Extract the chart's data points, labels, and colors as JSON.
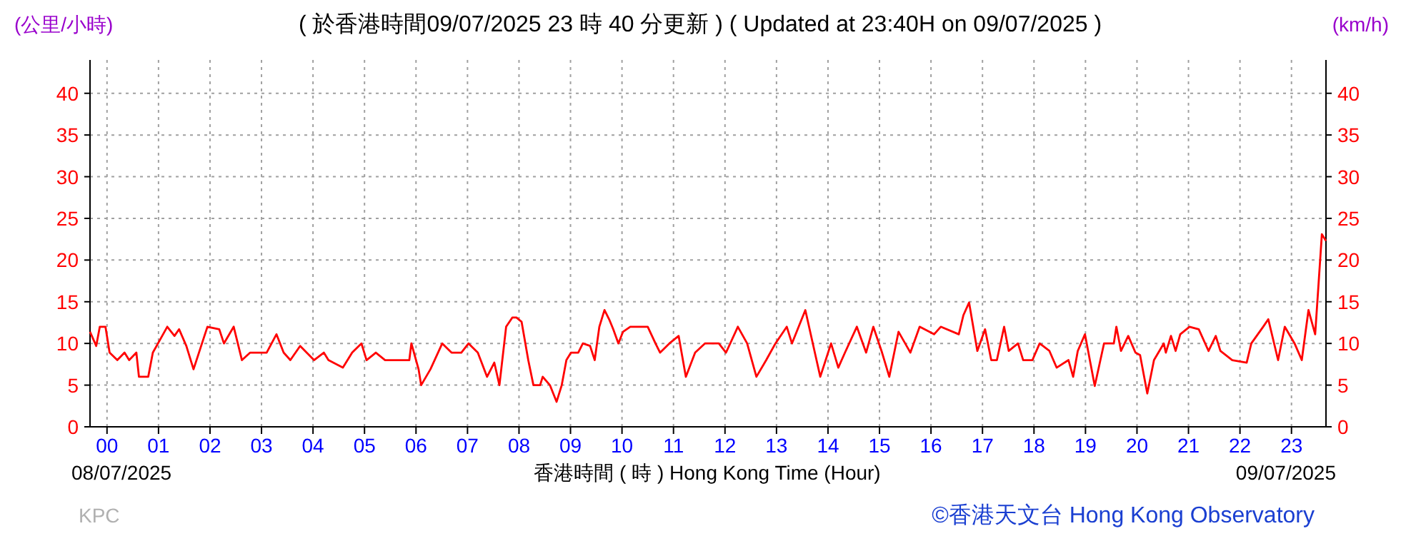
{
  "chart_data": {
    "type": "line",
    "title": "( 於香港時間09/07/2025 23 時 40 分更新 ) ( Updated at 23:40H on 09/07/2025 )",
    "xlabel": "香港時間 ( 時 ) Hong Kong Time (Hour)",
    "ylabel": "(公里/小時)",
    "y2label": "(km/h)",
    "annotations": [
      "08/07/2025",
      "09/07/2025",
      "KPC",
      "©香港天文台 Hong Kong Observatory"
    ],
    "x": [
      -0.33,
      -0.21,
      -0.14,
      -0.03,
      0.05,
      0.2,
      0.34,
      0.43,
      0.57,
      0.62,
      0.8,
      0.89,
      0.99,
      1.17,
      1.31,
      1.4,
      1.54,
      1.68,
      1.86,
      1.95,
      2.18,
      2.27,
      2.46,
      2.62,
      2.78,
      3.1,
      3.29,
      3.43,
      3.56,
      3.75,
      4.02,
      4.21,
      4.3,
      4.58,
      4.76,
      4.94,
      5.04,
      5.22,
      5.4,
      5.87,
      5.91,
      6.05,
      6.1,
      6.28,
      6.51,
      6.69,
      6.88,
      7.02,
      7.2,
      7.38,
      7.52,
      7.62,
      7.75,
      7.87,
      7.95,
      8.05,
      8.18,
      8.28,
      8.41,
      8.46,
      8.6,
      8.73,
      8.83,
      8.92,
      9.01,
      9.15,
      9.24,
      9.38,
      9.47,
      9.56,
      9.66,
      9.75,
      9.83,
      9.93,
      10.02,
      10.16,
      10.5,
      10.65,
      10.74,
      10.92,
      11.1,
      11.24,
      11.42,
      11.61,
      11.88,
      12.02,
      12.25,
      12.43,
      12.61,
      12.8,
      12.98,
      13.2,
      13.3,
      13.56,
      13.85,
      14.06,
      14.2,
      14.33,
      14.56,
      14.74,
      14.88,
      15.05,
      15.19,
      15.37,
      15.6,
      15.78,
      16.06,
      16.19,
      16.54,
      16.63,
      16.74,
      16.9,
      17.05,
      17.17,
      17.28,
      17.42,
      17.51,
      17.69,
      17.79,
      17.97,
      18.11,
      18.3,
      18.44,
      18.67,
      18.76,
      18.85,
      18.99,
      19.18,
      19.36,
      19.55,
      19.6,
      19.69,
      19.83,
      19.97,
      20.06,
      20.2,
      20.33,
      20.52,
      20.56,
      20.66,
      20.75,
      20.84,
      21.02,
      21.2,
      21.39,
      21.53,
      21.62,
      21.85,
      22.13,
      22.22,
      22.45,
      22.55,
      22.74,
      22.87,
      23.06,
      23.2,
      23.33,
      23.46,
      23.52,
      23.59,
      23.67
    ],
    "series": [
      {
        "color": "#ff0000",
        "values": [
          11.4,
          9.7,
          12,
          12,
          8.9,
          8,
          8.9,
          8,
          8.9,
          6,
          6,
          8.9,
          10,
          12,
          10.9,
          11.7,
          9.7,
          6.9,
          10.3,
          12,
          11.7,
          10,
          12,
          8,
          8.9,
          8.9,
          11.1,
          8.9,
          8,
          9.7,
          8,
          8.9,
          8,
          7.1,
          8.9,
          10,
          8,
          8.9,
          8,
          8,
          10,
          6.9,
          5,
          6.9,
          10,
          8.9,
          8.9,
          10,
          8.9,
          6,
          7.7,
          5,
          12,
          13.1,
          13.1,
          12.6,
          8,
          5,
          5,
          6,
          5,
          3,
          5,
          8,
          8.9,
          8.9,
          10,
          9.7,
          8,
          12,
          14,
          12.9,
          11.7,
          10,
          11.4,
          12,
          12,
          10,
          8.9,
          10,
          10.9,
          6,
          8.9,
          10,
          10,
          8.9,
          12,
          10,
          6,
          8,
          10,
          12,
          10,
          14,
          6,
          10,
          7.1,
          8.9,
          12,
          8.9,
          12,
          8.9,
          6,
          11.4,
          8.9,
          12,
          11.1,
          12,
          11.1,
          13.4,
          14.9,
          9.1,
          11.7,
          8,
          8,
          12,
          9.1,
          10,
          8,
          8,
          10,
          9.1,
          7.1,
          8,
          6,
          9.1,
          11.1,
          4.9,
          10,
          10,
          12,
          9.1,
          10.9,
          8.9,
          8.6,
          4,
          8,
          10,
          8.9,
          10.9,
          9.1,
          11.1,
          12,
          11.7,
          9.1,
          10.9,
          9.1,
          8,
          7.7,
          10,
          12,
          12.9,
          8,
          12,
          10,
          8,
          14,
          11.1,
          16.6,
          23.1,
          22.3
        ]
      }
    ],
    "xlim": [
      -0.33,
      23.67
    ],
    "xticks": [
      {
        "value": 0,
        "label": "00"
      },
      {
        "value": 1,
        "label": "01"
      },
      {
        "value": 2,
        "label": "02"
      },
      {
        "value": 3,
        "label": "03"
      },
      {
        "value": 4,
        "label": "04"
      },
      {
        "value": 5,
        "label": "05"
      },
      {
        "value": 6,
        "label": "06"
      },
      {
        "value": 7,
        "label": "07"
      },
      {
        "value": 8,
        "label": "08"
      },
      {
        "value": 9,
        "label": "09"
      },
      {
        "value": 10,
        "label": "10"
      },
      {
        "value": 11,
        "label": "11"
      },
      {
        "value": 12,
        "label": "12"
      },
      {
        "value": 13,
        "label": "13"
      },
      {
        "value": 14,
        "label": "14"
      },
      {
        "value": 15,
        "label": "15"
      },
      {
        "value": 16,
        "label": "16"
      },
      {
        "value": 17,
        "label": "17"
      },
      {
        "value": 18,
        "label": "18"
      },
      {
        "value": 19,
        "label": "19"
      },
      {
        "value": 20,
        "label": "20"
      },
      {
        "value": 21,
        "label": "21"
      },
      {
        "value": 22,
        "label": "22"
      },
      {
        "value": 23,
        "label": "23"
      }
    ],
    "ylim": [
      0,
      44
    ],
    "yticks": [
      0,
      5,
      10,
      15,
      20,
      25,
      30,
      35,
      40
    ],
    "y2lim": [
      0,
      44
    ],
    "y2ticks": [
      0,
      5,
      10,
      15,
      20,
      25,
      30,
      35,
      40
    ],
    "grid": true,
    "line_style": "solid",
    "marker": "none"
  }
}
